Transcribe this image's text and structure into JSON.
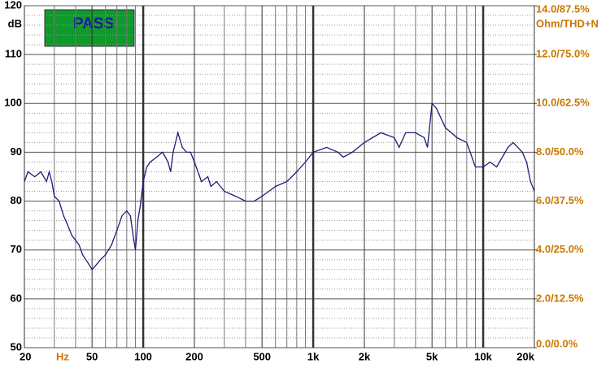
{
  "chart_data": {
    "type": "line",
    "badge": "PASS",
    "y_unit": "dB",
    "x_unit": "Hz",
    "y2_label": "Ohm/THD+N",
    "xlog": true,
    "xlim": [
      20,
      20000
    ],
    "xticks": [
      20,
      50,
      100,
      200,
      500,
      {
        "value": 1000,
        "label": "1k"
      },
      {
        "value": 2000,
        "label": "2k"
      },
      {
        "value": 5000,
        "label": "5k"
      },
      {
        "value": 10000,
        "label": "10k"
      },
      {
        "value": 20000,
        "label": "20k"
      }
    ],
    "xminor": [
      30,
      40,
      60,
      70,
      80,
      90,
      300,
      400,
      600,
      700,
      800,
      900,
      3000,
      4000,
      6000,
      7000,
      8000,
      9000
    ],
    "ylim": [
      50,
      120
    ],
    "yticks": [
      50,
      60,
      70,
      80,
      90,
      100,
      110,
      120
    ],
    "yminor": [
      52,
      54,
      56,
      58,
      62,
      64,
      66,
      68,
      72,
      74,
      76,
      78,
      82,
      84,
      86,
      88,
      92,
      94,
      96,
      98,
      102,
      104,
      106,
      108,
      112,
      114,
      116,
      118
    ],
    "y2lim": [
      0,
      14
    ],
    "y2ticks": [
      {
        "value": 0,
        "label": "0.0/0.0%"
      },
      {
        "value": 2,
        "label": "2.0/12.5%"
      },
      {
        "value": 4,
        "label": "4.0/25.0%"
      },
      {
        "value": 6,
        "label": "6.0/37.5%"
      },
      {
        "value": 8,
        "label": "8.0/50.0%"
      },
      {
        "value": 10,
        "label": "10.0/62.5%"
      },
      {
        "value": 12,
        "label": "12.0/75.0%"
      },
      {
        "value": 14,
        "label": "14.0/87.5%"
      }
    ],
    "grid": true,
    "series": [
      {
        "color": "#1c1c78",
        "x": [
          20,
          21,
          23,
          25,
          27,
          28,
          29,
          30,
          32,
          34,
          36,
          38,
          40,
          42,
          44,
          46,
          48,
          50,
          53,
          56,
          60,
          65,
          70,
          75,
          80,
          84,
          88,
          90,
          93,
          96,
          100,
          105,
          110,
          120,
          130,
          140,
          145,
          150,
          160,
          170,
          180,
          190,
          200,
          210,
          220,
          240,
          250,
          270,
          300,
          350,
          400,
          450,
          500,
          600,
          700,
          800,
          900,
          1000,
          1200,
          1400,
          1500,
          1700,
          2000,
          2500,
          3000,
          3200,
          3500,
          4000,
          4500,
          4700,
          5000,
          5300,
          6000,
          6500,
          7000,
          8000,
          9000,
          10000,
          11000,
          12000,
          14000,
          15000,
          16000,
          17000,
          18000,
          19000,
          20000
        ],
        "values": [
          84,
          86,
          85,
          86,
          84,
          86,
          84,
          81,
          80,
          77,
          75,
          73,
          72,
          71,
          69,
          68,
          67,
          66,
          67,
          68,
          69,
          71,
          74,
          77,
          78,
          77,
          72,
          70,
          76,
          79,
          84,
          87,
          88,
          89,
          90,
          88,
          86,
          90,
          94,
          91,
          90,
          90,
          88,
          86,
          84,
          85,
          83,
          84,
          82,
          81,
          80,
          80,
          81,
          83,
          84,
          86,
          88,
          90,
          91,
          90,
          89,
          90,
          92,
          94,
          93,
          91,
          94,
          94,
          93,
          91,
          100,
          99,
          95,
          94,
          93,
          92,
          87,
          87,
          88,
          87,
          91,
          92,
          91,
          90,
          88,
          84,
          82
        ]
      }
    ]
  }
}
